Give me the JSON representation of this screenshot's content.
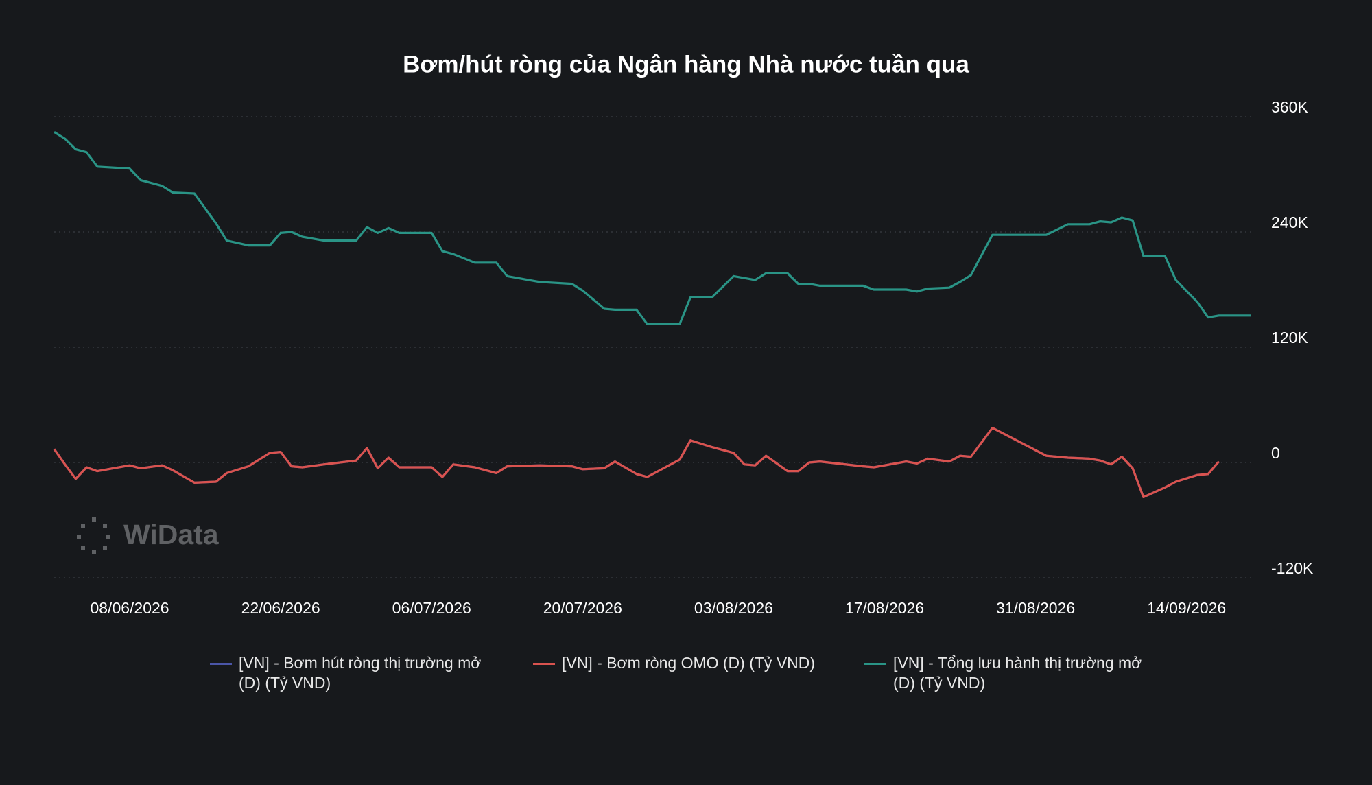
{
  "chart_data": {
    "type": "line",
    "title": "Bơm/hút ròng của Ngân hàng Nhà nước tuần qua",
    "watermark": "WiData",
    "x": [
      "01/06/2026",
      "02/06/2026",
      "03/06/2026",
      "04/06/2026",
      "05/06/2026",
      "08/06/2026",
      "09/06/2026",
      "11/06/2026",
      "12/06/2026",
      "14/06/2026",
      "16/06/2026",
      "17/06/2026",
      "19/06/2026",
      "21/06/2026",
      "22/06/2026",
      "23/06/2026",
      "24/06/2026",
      "26/06/2026",
      "29/06/2026",
      "30/06/2026",
      "01/07/2026",
      "02/07/2026",
      "03/07/2026",
      "06/07/2026",
      "07/07/2026",
      "08/07/2026",
      "10/07/2026",
      "12/07/2026",
      "13/07/2026",
      "16/07/2026",
      "19/07/2026",
      "20/07/2026",
      "22/07/2026",
      "23/07/2026",
      "25/07/2026",
      "26/07/2026",
      "29/07/2026",
      "30/07/2026",
      "01/08/2026",
      "03/08/2026",
      "04/08/2026",
      "05/08/2026",
      "06/08/2026",
      "08/08/2026",
      "09/08/2026",
      "10/08/2026",
      "11/08/2026",
      "15/08/2026",
      "16/08/2026",
      "19/08/2026",
      "20/08/2026",
      "21/08/2026",
      "23/08/2026",
      "24/08/2026",
      "25/08/2026",
      "27/08/2026",
      "01/09/2026",
      "03/09/2026",
      "05/09/2026",
      "06/09/2026",
      "07/09/2026",
      "08/09/2026",
      "09/09/2026",
      "10/09/2026",
      "12/09/2026",
      "13/09/2026",
      "15/09/2026",
      "16/09/2026",
      "17/09/2026",
      "20/09/2026"
    ],
    "xlim": [
      "01/06/2026",
      "20/09/2026"
    ],
    "xticks": [
      "08/06/2026",
      "22/06/2026",
      "06/07/2026",
      "20/07/2026",
      "03/08/2026",
      "17/08/2026",
      "31/08/2026",
      "14/09/2026"
    ],
    "ylim": [
      -120000,
      360000
    ],
    "yticks": [
      {
        "value": -120000,
        "label": "-120K"
      },
      0,
      {
        "value": 120000,
        "label": "120K"
      },
      {
        "value": 240000,
        "label": "240K"
      },
      {
        "value": 360000,
        "label": "360K"
      }
    ],
    "grid": true,
    "series": [
      {
        "name": "[VN] - Bơm hút ròng thị trường mở (D) (Tỷ VND)",
        "color": "#4b56a8",
        "values": [
          14000,
          -2000,
          -17000,
          -5000,
          -9000,
          -3000,
          -6000,
          -3000,
          -8000,
          -21000,
          -20000,
          -11000,
          -4000,
          10000,
          11000,
          -4000,
          -5000,
          -2000,
          2000,
          15000,
          -6000,
          5000,
          -5000,
          -5000,
          -15000,
          -2000,
          -5000,
          -11000,
          -4000,
          -3000,
          -4000,
          -7000,
          -6000,
          1000,
          -12000,
          -15000,
          3000,
          23000,
          16000,
          10000,
          -2000,
          -3000,
          7000,
          -9000,
          -9000,
          0,
          1000,
          -4000,
          -5000,
          1000,
          -1000,
          4000,
          1000,
          7000,
          6000,
          36000,
          7000,
          5000,
          4000,
          2000,
          -2000,
          6000,
          -6000,
          -36000,
          -26000,
          -20000,
          -13000,
          -12000,
          1000,
          null
        ]
      },
      {
        "name": "[VN] - Bơm ròng OMO (D) (Tỷ VND)",
        "color": "#d9534f",
        "values": [
          14000,
          -2000,
          -17000,
          -5000,
          -9000,
          -3000,
          -6000,
          -3000,
          -8000,
          -21000,
          -20000,
          -11000,
          -4000,
          10000,
          11000,
          -4000,
          -5000,
          -2000,
          2000,
          15000,
          -6000,
          5000,
          -5000,
          -5000,
          -15000,
          -2000,
          -5000,
          -11000,
          -4000,
          -3000,
          -4000,
          -7000,
          -6000,
          1000,
          -12000,
          -15000,
          3000,
          23000,
          16000,
          10000,
          -2000,
          -3000,
          7000,
          -9000,
          -9000,
          0,
          1000,
          -4000,
          -5000,
          1000,
          -1000,
          4000,
          1000,
          7000,
          6000,
          36000,
          7000,
          5000,
          4000,
          2000,
          -2000,
          6000,
          -6000,
          -36000,
          -26000,
          -20000,
          -13000,
          -12000,
          1000,
          null
        ]
      },
      {
        "name": "[VN] - Tổng lưu hành thị trường mở (D) (Tỷ VND)",
        "color": "#2a9486",
        "values": [
          344000,
          337000,
          326000,
          323000,
          308000,
          306000,
          294000,
          288000,
          281000,
          280000,
          249000,
          231000,
          226000,
          226000,
          239000,
          240000,
          235000,
          231000,
          231000,
          245000,
          239000,
          244000,
          239000,
          239000,
          220000,
          217000,
          208000,
          208000,
          194000,
          188000,
          186000,
          179000,
          160000,
          159000,
          159000,
          144000,
          144000,
          172000,
          172000,
          194000,
          192000,
          190000,
          197000,
          197000,
          186000,
          186000,
          184000,
          184000,
          180000,
          180000,
          178000,
          181000,
          182000,
          188000,
          195000,
          237000,
          237000,
          248000,
          248000,
          251000,
          250000,
          255000,
          252000,
          215000,
          215000,
          190000,
          167000,
          151000,
          153000,
          153000
        ]
      }
    ]
  }
}
